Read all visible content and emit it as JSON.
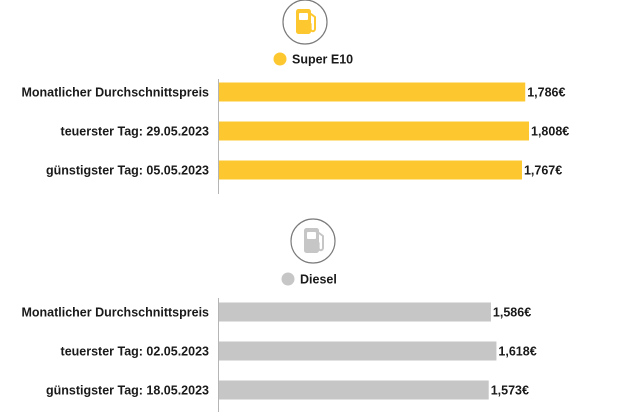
{
  "chart_data": [
    {
      "type": "bar",
      "orientation": "horizontal",
      "icon": "fuel-pump-icon",
      "legend": "Super E10",
      "color": "#fdc82f",
      "categories": [
        "Monatlicher Durchschnittspreis",
        "teuerster Tag: 29.05.2023",
        "günstigster Tag: 05.05.2023"
      ],
      "values": [
        1.786,
        1.808,
        1.767
      ],
      "value_labels": [
        "1,786€",
        "1,808€",
        "1,767€"
      ]
    },
    {
      "type": "bar",
      "orientation": "horizontal",
      "icon": "fuel-pump-icon",
      "legend": "Diesel",
      "color": "#c6c6c6",
      "categories": [
        "Monatlicher Durchschnittspreis",
        "teuerster Tag: 02.05.2023",
        "günstigster Tag: 18.05.2023"
      ],
      "values": [
        1.586,
        1.618,
        1.573
      ],
      "value_labels": [
        "1,586€",
        "1,618€",
        "1,573€"
      ]
    }
  ]
}
